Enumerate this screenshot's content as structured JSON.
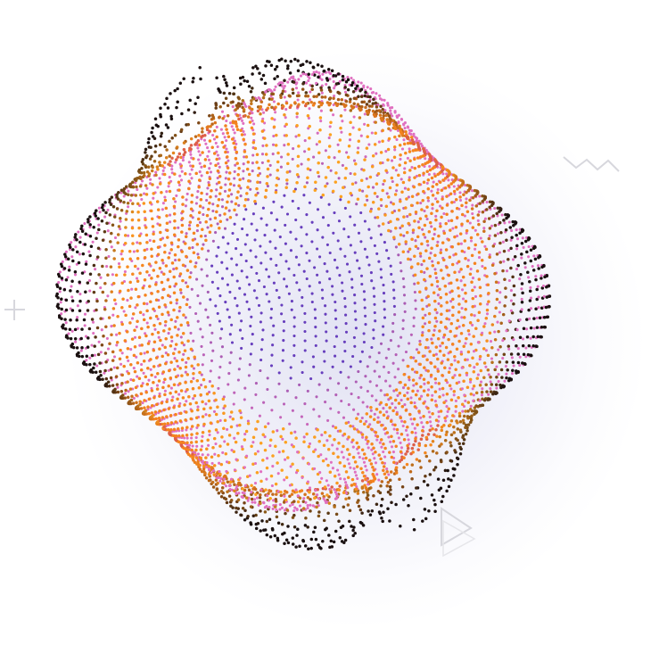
{
  "illustration": {
    "subject": "dotted-sphere",
    "colors": {
      "background": "#ffffff",
      "glow": "#8a8ad0",
      "rim_dark": "#1a1010",
      "orange": "#f5821f",
      "amber": "#ffb020",
      "magenta": "#c0307a",
      "pink": "#e070c0",
      "violet": "#7a40d0",
      "indigo": "#4a3aa0",
      "deco_stroke": "#d7d7dd"
    },
    "decorations": [
      {
        "icon": "zigzag-icon"
      },
      {
        "icon": "plus-icon"
      },
      {
        "icon": "play-triangle-icon"
      }
    ]
  }
}
